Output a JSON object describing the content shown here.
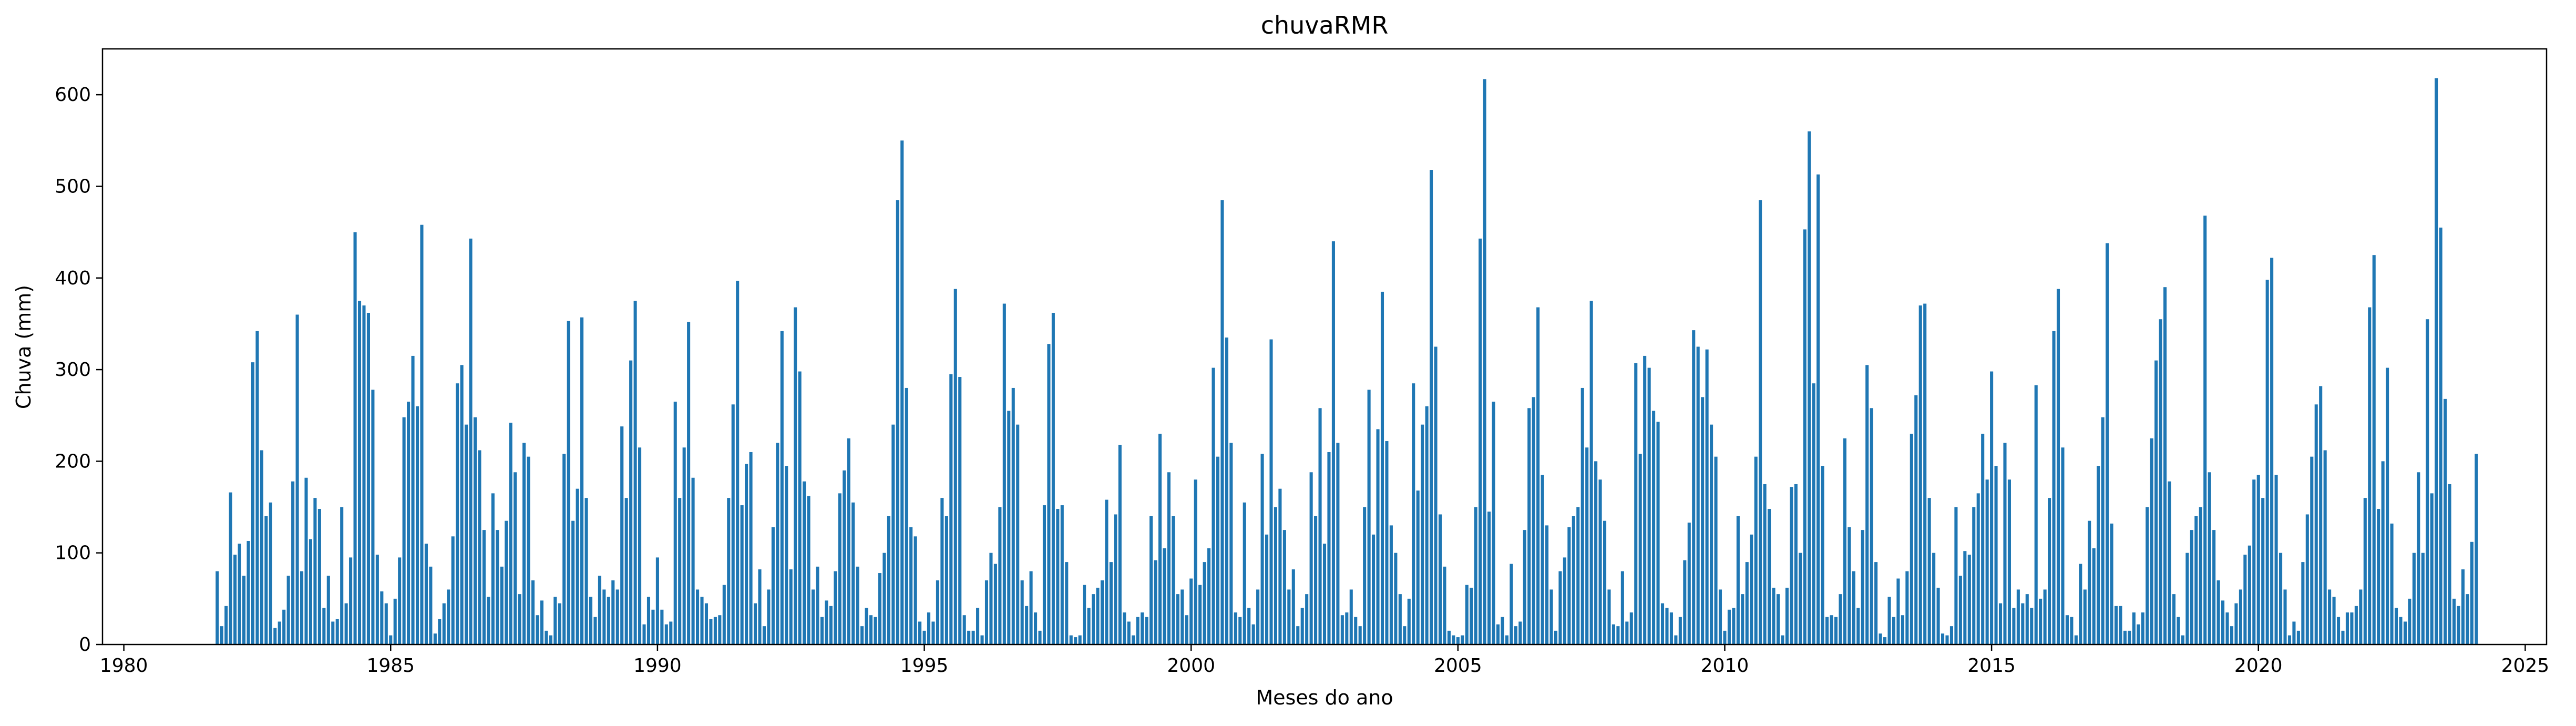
{
  "chart_data": {
    "type": "bar",
    "title": "chuvaRMR",
    "xlabel": "Meses do ano",
    "ylabel": "Chuva (mm)",
    "xlim": [
      1979.6,
      2025.4
    ],
    "ylim": [
      0,
      650
    ],
    "xticks": [
      1980,
      1985,
      1990,
      1995,
      2000,
      2005,
      2010,
      2015,
      2020,
      2025
    ],
    "yticks": [
      0,
      100,
      200,
      300,
      400,
      500,
      600
    ],
    "grid": false,
    "bar_color": "#1f77b4",
    "x_start": "1981-10",
    "x_step": "1 month",
    "values": [
      80,
      20,
      42,
      166,
      98,
      110,
      75,
      113,
      308,
      342,
      212,
      140,
      155,
      18,
      25,
      38,
      75,
      178,
      360,
      80,
      182,
      115,
      160,
      148,
      40,
      75,
      25,
      28,
      150,
      45,
      95,
      450,
      375,
      370,
      362,
      278,
      98,
      58,
      45,
      10,
      50,
      95,
      248,
      265,
      315,
      260,
      458,
      110,
      85,
      12,
      28,
      45,
      60,
      118,
      285,
      305,
      240,
      443,
      248,
      212,
      125,
      52,
      165,
      125,
      85,
      135,
      242,
      188,
      55,
      220,
      205,
      70,
      32,
      48,
      15,
      10,
      52,
      45,
      208,
      353,
      135,
      170,
      357,
      160,
      52,
      30,
      75,
      60,
      52,
      70,
      60,
      238,
      160,
      310,
      375,
      215,
      22,
      52,
      38,
      95,
      38,
      22,
      25,
      265,
      160,
      215,
      352,
      182,
      60,
      52,
      45,
      28,
      30,
      32,
      65,
      160,
      262,
      397,
      152,
      197,
      210,
      45,
      82,
      20,
      60,
      128,
      220,
      342,
      195,
      82,
      368,
      298,
      178,
      162,
      60,
      85,
      30,
      48,
      42,
      80,
      165,
      190,
      225,
      155,
      85,
      20,
      40,
      32,
      30,
      78,
      100,
      140,
      240,
      485,
      550,
      280,
      128,
      118,
      25,
      15,
      35,
      25,
      70,
      160,
      140,
      295,
      388,
      292,
      32,
      15,
      15,
      40,
      10,
      70,
      100,
      88,
      150,
      372,
      255,
      280,
      240,
      70,
      42,
      80,
      35,
      15,
      152,
      328,
      362,
      148,
      152,
      90,
      10,
      8,
      10,
      65,
      40,
      55,
      62,
      70,
      158,
      90,
      142,
      218,
      35,
      25,
      10,
      30,
      35,
      30,
      140,
      92,
      230,
      105,
      188,
      140,
      55,
      60,
      32,
      72,
      180,
      65,
      90,
      105,
      302,
      205,
      485,
      335,
      220,
      35,
      30,
      155,
      40,
      22,
      60,
      208,
      120,
      333,
      150,
      170,
      125,
      60,
      82,
      20,
      40,
      55,
      188,
      140,
      258,
      110,
      210,
      440,
      220,
      32,
      35,
      60,
      30,
      20,
      150,
      278,
      120,
      235,
      385,
      222,
      130,
      100,
      55,
      20,
      50,
      285,
      168,
      240,
      260,
      518,
      325,
      142,
      85,
      15,
      10,
      8,
      10,
      65,
      62,
      150,
      443,
      617,
      145,
      265,
      22,
      30,
      10,
      88,
      20,
      25,
      125,
      258,
      270,
      368,
      185,
      130,
      60,
      15,
      80,
      95,
      128,
      140,
      150,
      280,
      215,
      375,
      200,
      180,
      135,
      60,
      22,
      20,
      80,
      25,
      35,
      307,
      208,
      315,
      302,
      255,
      243,
      45,
      40,
      35,
      10,
      30,
      92,
      133,
      343,
      325,
      270,
      322,
      240,
      205,
      60,
      15,
      38,
      40,
      140,
      55,
      90,
      120,
      205,
      485,
      175,
      148,
      62,
      55,
      10,
      62,
      172,
      175,
      100,
      453,
      560,
      285,
      513,
      195,
      30,
      32,
      30,
      55,
      225,
      128,
      80,
      40,
      125,
      305,
      258,
      90,
      12,
      8,
      52,
      30,
      72,
      32,
      80,
      230,
      272,
      370,
      372,
      160,
      100,
      62,
      12,
      10,
      20,
      150,
      75,
      102,
      98,
      150,
      165,
      230,
      180,
      298,
      195,
      45,
      220,
      180,
      40,
      60,
      45,
      55,
      40,
      283,
      50,
      60,
      160,
      342,
      388,
      215,
      32,
      30,
      10,
      88,
      60,
      135,
      105,
      195,
      248,
      438,
      132,
      42,
      42,
      15,
      15,
      35,
      22,
      35,
      150,
      225,
      310,
      355,
      390,
      178,
      55,
      30,
      10,
      100,
      125,
      140,
      150,
      468,
      188,
      125,
      70,
      48,
      35,
      20,
      45,
      60,
      98,
      108,
      180,
      185,
      160,
      398,
      422,
      185,
      100,
      60,
      10,
      25,
      15,
      90,
      142,
      205,
      262,
      282,
      212,
      60,
      52,
      30,
      15,
      35,
      35,
      42,
      60,
      160,
      368,
      425,
      148,
      200,
      302,
      132,
      40,
      30,
      25,
      50,
      100,
      188,
      100,
      355,
      165,
      618,
      455,
      268,
      175,
      50,
      42,
      82,
      55,
      112,
      208
    ]
  }
}
